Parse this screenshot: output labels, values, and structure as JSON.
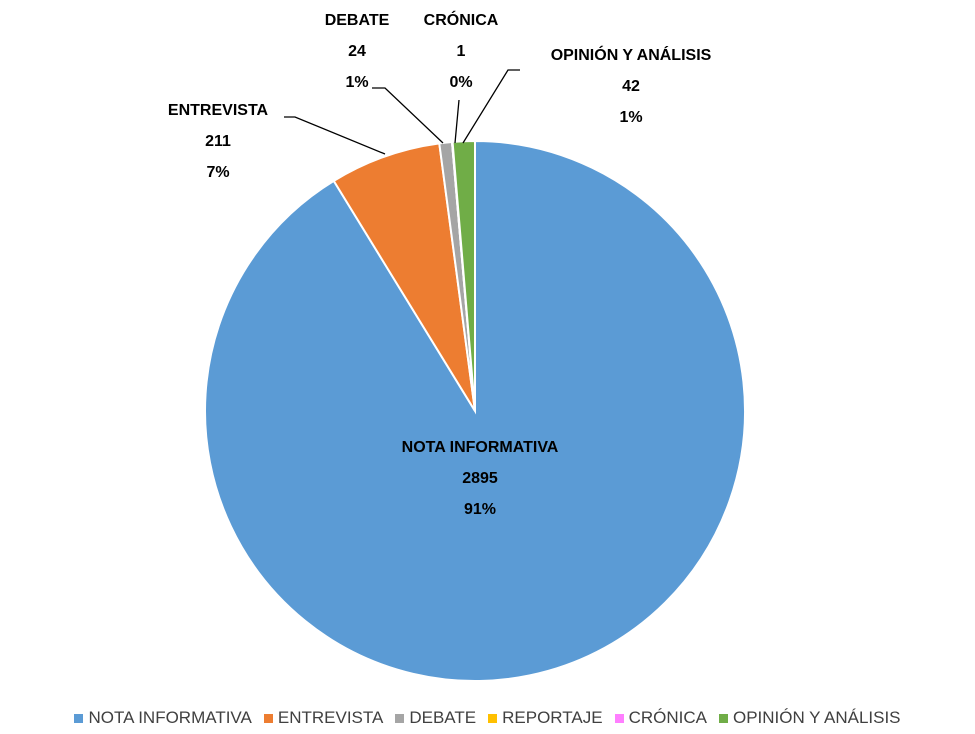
{
  "chart_data": {
    "type": "pie",
    "categories": [
      "NOTA INFORMATIVA",
      "ENTREVISTA",
      "DEBATE",
      "REPORTAJE",
      "CRÓNICA",
      "OPINIÓN Y ANÁLISIS"
    ],
    "values": [
      2895,
      211,
      24,
      0,
      1,
      42
    ],
    "percent_labels": [
      "91%",
      "7%",
      "1%",
      null,
      "0%",
      "1%"
    ],
    "colors": [
      "#5b9bd5",
      "#ed7d31",
      "#a5a5a5",
      "#ffc000",
      "#ff7fff",
      "#70ad47"
    ],
    "legend": "bottom"
  }
}
